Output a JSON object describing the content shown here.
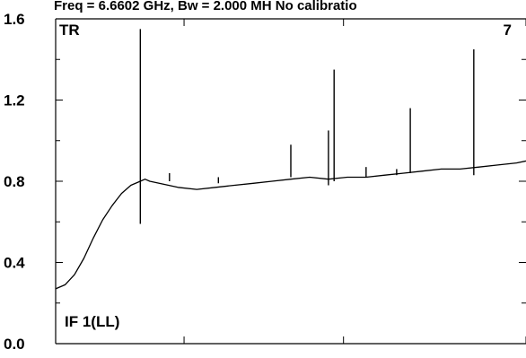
{
  "chart_data": {
    "type": "line",
    "title": "Freq = 6.6602 GHz, Bw = 2.000 MH  No calibratio",
    "xlabel": "",
    "ylabel": "",
    "xlim": [
      0,
      1
    ],
    "ylim": [
      0,
      1.6
    ],
    "y_ticks": [
      0.0,
      0.4,
      0.8,
      1.2,
      1.6
    ],
    "y_tick_labels": [
      "0.0",
      "0.4",
      "0.8",
      "1.2",
      "1.6"
    ],
    "x_ticks": [
      0.273,
      0.612,
      1.0
    ],
    "x_tick_labels": [],
    "grid": false,
    "line_color": "#000000",
    "annotations": {
      "top_left": "TR",
      "top_right": "7",
      "bottom_left": "IF 1(LL)"
    },
    "series": [
      {
        "x": [
          0.0,
          0.02,
          0.04,
          0.06,
          0.08,
          0.1,
          0.12,
          0.14,
          0.16,
          0.18,
          0.19,
          0.2,
          0.22,
          0.24,
          0.26,
          0.3,
          0.34,
          0.38,
          0.42,
          0.46,
          0.5,
          0.54,
          0.58,
          0.62,
          0.66,
          0.7,
          0.74,
          0.78,
          0.82,
          0.86,
          0.9,
          0.94,
          0.98,
          1.0
        ],
        "y": [
          0.27,
          0.29,
          0.34,
          0.42,
          0.52,
          0.61,
          0.68,
          0.74,
          0.78,
          0.8,
          0.81,
          0.8,
          0.79,
          0.78,
          0.77,
          0.76,
          0.77,
          0.78,
          0.79,
          0.8,
          0.81,
          0.82,
          0.81,
          0.82,
          0.82,
          0.83,
          0.84,
          0.85,
          0.86,
          0.86,
          0.87,
          0.88,
          0.89,
          0.9
        ]
      }
    ],
    "spikes": [
      {
        "x": 0.18,
        "peak": 1.55,
        "trough": 0.59
      },
      {
        "x": 0.242,
        "peak": 0.84,
        "trough": 0.8
      },
      {
        "x": 0.346,
        "peak": 0.82,
        "trough": 0.79
      },
      {
        "x": 0.5,
        "peak": 0.98,
        "trough": 0.82
      },
      {
        "x": 0.58,
        "peak": 1.05,
        "trough": 0.78
      },
      {
        "x": 0.592,
        "peak": 1.35,
        "trough": 0.8
      },
      {
        "x": 0.66,
        "peak": 0.87,
        "trough": 0.82
      },
      {
        "x": 0.725,
        "peak": 0.86,
        "trough": 0.83
      },
      {
        "x": 0.754,
        "peak": 1.16,
        "trough": 0.84
      },
      {
        "x": 0.889,
        "peak": 1.45,
        "trough": 0.83
      }
    ]
  }
}
